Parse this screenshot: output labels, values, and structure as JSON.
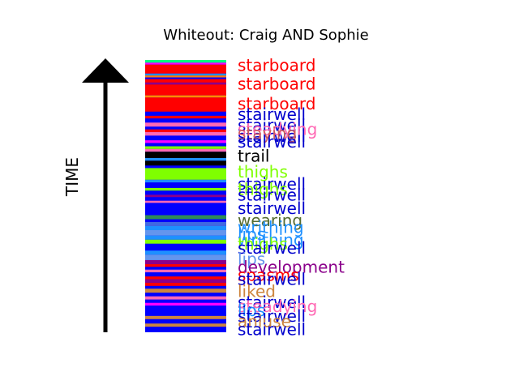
{
  "chart_data": {
    "type": "bar",
    "title": "Whiteout: Craig AND Sophie",
    "ylabel": "TIME",
    "xlabel": "",
    "ylim": [
      0,
      1
    ],
    "grid": false,
    "legend": "none",
    "stripes": [
      {
        "t": 1.0,
        "c": "#00ff7f"
      },
      {
        "t": 0.99,
        "c": "#ff00ff"
      },
      {
        "t": 0.983,
        "c": "#ff0000"
      },
      {
        "t": 0.95,
        "c": "#1e90ff"
      },
      {
        "t": 0.943,
        "c": "#ff7f00"
      },
      {
        "t": 0.936,
        "c": "#0000ff"
      },
      {
        "t": 0.93,
        "c": "#ff0000"
      },
      {
        "t": 0.917,
        "c": "#8b008b"
      },
      {
        "t": 0.91,
        "c": "#ff0000"
      },
      {
        "t": 0.87,
        "c": "#ff8c00"
      },
      {
        "t": 0.862,
        "c": "#ff0000"
      },
      {
        "t": 0.81,
        "c": "#0000ff"
      },
      {
        "t": 0.795,
        "c": "#ff0000"
      },
      {
        "t": 0.785,
        "c": "#0000ff"
      },
      {
        "t": 0.77,
        "c": "#ff69b4"
      },
      {
        "t": 0.755,
        "c": "#0000ff"
      },
      {
        "t": 0.745,
        "c": "#ff0000"
      },
      {
        "t": 0.735,
        "c": "#ff69b4"
      },
      {
        "t": 0.722,
        "c": "#0000ff"
      },
      {
        "t": 0.705,
        "c": "#ff00ff"
      },
      {
        "t": 0.695,
        "c": "#0000ff"
      },
      {
        "t": 0.683,
        "c": "#7fff00"
      },
      {
        "t": 0.673,
        "c": "#ff69b4"
      },
      {
        "t": 0.663,
        "c": "#000000"
      },
      {
        "t": 0.64,
        "c": "#1e90ff"
      },
      {
        "t": 0.63,
        "c": "#000000"
      },
      {
        "t": 0.612,
        "c": "#0000ff"
      },
      {
        "t": 0.603,
        "c": "#7fff00"
      },
      {
        "t": 0.56,
        "c": "#1e90ff"
      },
      {
        "t": 0.55,
        "c": "#0000ff"
      },
      {
        "t": 0.53,
        "c": "#7fff00"
      },
      {
        "t": 0.52,
        "c": "#0000ff"
      },
      {
        "t": 0.505,
        "c": "#8b008b"
      },
      {
        "t": 0.496,
        "c": "#0000ff"
      },
      {
        "t": 0.483,
        "c": "#ff69b4"
      },
      {
        "t": 0.475,
        "c": "#0000ff"
      },
      {
        "t": 0.43,
        "c": "#2e8b57"
      },
      {
        "t": 0.415,
        "c": "#0000ff"
      },
      {
        "t": 0.405,
        "c": "#4169e1"
      },
      {
        "t": 0.39,
        "c": "#1e90ff"
      },
      {
        "t": 0.375,
        "c": "#6495ed"
      },
      {
        "t": 0.355,
        "c": "#1e90ff"
      },
      {
        "t": 0.34,
        "c": "#7fff00"
      },
      {
        "t": 0.325,
        "c": "#0000ff"
      },
      {
        "t": 0.3,
        "c": "#1e90ff"
      },
      {
        "t": 0.285,
        "c": "#6495ed"
      },
      {
        "t": 0.265,
        "c": "#8b008b"
      },
      {
        "t": 0.25,
        "c": "#ff0000"
      },
      {
        "t": 0.24,
        "c": "#0000ff"
      },
      {
        "t": 0.23,
        "c": "#ff69b4"
      },
      {
        "t": 0.22,
        "c": "#0000ff"
      },
      {
        "t": 0.205,
        "c": "#ff0000"
      },
      {
        "t": 0.195,
        "c": "#8b008b"
      },
      {
        "t": 0.182,
        "c": "#ff0000"
      },
      {
        "t": 0.17,
        "c": "#0000ff"
      },
      {
        "t": 0.16,
        "c": "#cd853f"
      },
      {
        "t": 0.145,
        "c": "#0000ff"
      },
      {
        "t": 0.132,
        "c": "#ff69b4"
      },
      {
        "t": 0.12,
        "c": "#0000ff"
      },
      {
        "t": 0.108,
        "c": "#ff00ff"
      },
      {
        "t": 0.098,
        "c": "#0000ff"
      },
      {
        "t": 0.06,
        "c": "#cd853f"
      },
      {
        "t": 0.048,
        "c": "#0000ff"
      },
      {
        "t": 0.032,
        "c": "#cd853f"
      },
      {
        "t": 0.02,
        "c": "#0000ff"
      }
    ],
    "labels": [
      {
        "text": "starboard",
        "t": 0.98,
        "color": "#ff0000"
      },
      {
        "text": "starboard",
        "t": 0.912,
        "color": "#ff0000"
      },
      {
        "text": "starboard",
        "t": 0.84,
        "color": "#ff0000"
      },
      {
        "text": "stairwell",
        "t": 0.8,
        "color": "#0000cd"
      },
      {
        "text": "stairwell",
        "t": 0.76,
        "color": "#0000cd"
      },
      {
        "text": "stairwell",
        "t": 0.72,
        "color": "#0000cd"
      },
      {
        "text": "steadying",
        "t": 0.745,
        "color": "#ff69b4"
      },
      {
        "text": "staying",
        "t": 0.73,
        "color": "#cd5c5c"
      },
      {
        "text": "stairwell",
        "t": 0.7,
        "color": "#0000cd"
      },
      {
        "text": "trail",
        "t": 0.648,
        "color": "#000000"
      },
      {
        "text": "thighs",
        "t": 0.59,
        "color": "#7fff00"
      },
      {
        "text": "stairwell",
        "t": 0.545,
        "color": "#0000cd"
      },
      {
        "text": "thighs",
        "t": 0.525,
        "color": "#7fff00"
      },
      {
        "text": "stairwell",
        "t": 0.505,
        "color": "#0000cd"
      },
      {
        "text": "stairwell",
        "t": 0.455,
        "color": "#0000cd"
      },
      {
        "text": "wearing",
        "t": 0.41,
        "color": "#556b2f"
      },
      {
        "text": "writhing",
        "t": 0.385,
        "color": "#1e90ff"
      },
      {
        "text": "lips",
        "t": 0.36,
        "color": "#1e90ff"
      },
      {
        "text": "writhing",
        "t": 0.34,
        "color": "#1e90ff"
      },
      {
        "text": "thighs",
        "t": 0.325,
        "color": "#7fff00"
      },
      {
        "text": "stairwell",
        "t": 0.31,
        "color": "#0000cd"
      },
      {
        "text": "lips",
        "t": 0.27,
        "color": "#6495ed"
      },
      {
        "text": "development",
        "t": 0.24,
        "color": "#8b008b"
      },
      {
        "text": "spasms",
        "t": 0.21,
        "color": "#ff0000"
      },
      {
        "text": "stairwell",
        "t": 0.195,
        "color": "#0000cd"
      },
      {
        "text": "liked",
        "t": 0.15,
        "color": "#cd853f"
      },
      {
        "text": "stairwell",
        "t": 0.11,
        "color": "#0000cd"
      },
      {
        "text": "steadying",
        "t": 0.095,
        "color": "#ff69b4"
      },
      {
        "text": "lips",
        "t": 0.08,
        "color": "#1e90ff"
      },
      {
        "text": "stairwell",
        "t": 0.06,
        "color": "#0000cd"
      },
      {
        "text": "aniuse",
        "t": 0.04,
        "color": "#cd853f"
      },
      {
        "text": "stairwell",
        "t": 0.01,
        "color": "#0000cd"
      }
    ]
  }
}
